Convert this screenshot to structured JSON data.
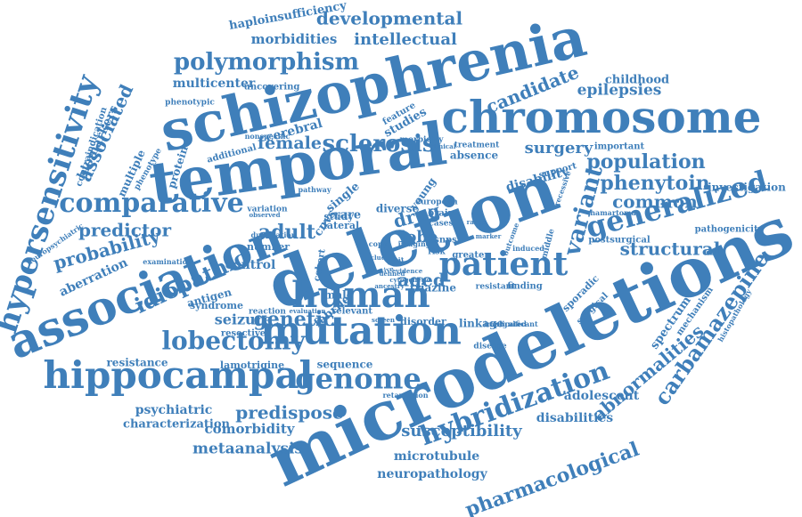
{
  "colors": {
    "word": "#3f7fba",
    "background": "#ffffff"
  },
  "words": [
    "schizophrenia",
    "chromosome",
    "temporal",
    "deletion",
    "microdeletions",
    "association",
    "hippocampal",
    "mutation",
    "human",
    "hypersensitivity",
    "hybridization",
    "carbamazepine",
    "patient",
    "lobectomy",
    "genome",
    "generalized",
    "comparative",
    "polymorphism",
    "developmental",
    "intellectual",
    "morbidities",
    "haploinsufficiency",
    "multicenter",
    "candidate",
    "epilepsies",
    "childhood",
    "phenytoin",
    "population",
    "pharmacological",
    "susceptibility",
    "abnormalities",
    "variant",
    "sclerosis",
    "predispose",
    "idiopathic",
    "genetic",
    "female",
    "surgery",
    "adult",
    "aged",
    "drug",
    "lobe",
    "common",
    "structural",
    "investigation",
    "pathogenicity",
    "postsurgical",
    "disability",
    "predictor",
    "probability",
    "aberration",
    "associated",
    "biomarkers",
    "contraindication",
    "multiple",
    "protein",
    "cerebral",
    "studies",
    "feature",
    "treatment",
    "absence",
    "important",
    "support",
    "psychiatric",
    "characterization",
    "comorbidity",
    "metaanalysis",
    "microtubule",
    "neuropathology",
    "adolescent",
    "disabilities",
    "spectrum",
    "mechanism",
    "histopathology",
    "control",
    "seizure",
    "antigen",
    "lamotrigine",
    "resistance",
    "sequence",
    "syndrome",
    "resective",
    "reaction",
    "febrile",
    "relevant",
    "male",
    "linkage",
    "disorder",
    "triazine",
    "resistant",
    "finding",
    "sporadic",
    "surgical",
    "disease",
    "implicated",
    "significant",
    "uncovering",
    "phenotypic",
    "additional",
    "nonspecific",
    "diverse",
    "single",
    "rare",
    "lateral",
    "study",
    "variation",
    "observed",
    "european",
    "young",
    "cnvs",
    "number",
    "cohort",
    "phenotype",
    "neuropsychiatric",
    "retardation",
    "examination",
    "duplication",
    "cases",
    "brain",
    "risk",
    "snps",
    "greater",
    "induced",
    "middle",
    "recessive",
    "hamartoma",
    "copy",
    "pathway",
    "imaging",
    "screen",
    "marker",
    "outcome",
    "evaluation",
    "evidence",
    "range",
    "clinical",
    "morbidity",
    "curative",
    "trait",
    "clue",
    "defined",
    "cytogenetic",
    "ancestry"
  ]
}
